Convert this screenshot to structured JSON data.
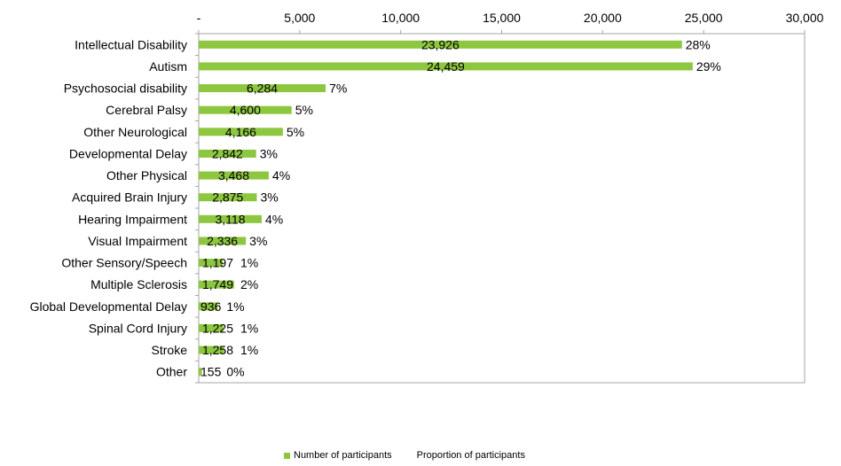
{
  "chart_data": {
    "type": "bar",
    "orientation": "horizontal",
    "categories": [
      "Intellectual Disability",
      "Autism",
      "Psychosocial disability",
      "Cerebral Palsy",
      "Other Neurological",
      "Developmental Delay",
      "Other Physical",
      "Acquired Brain Injury",
      "Hearing Impairment",
      "Visual Impairment",
      "Other Sensory/Speech",
      "Multiple Sclerosis",
      "Global Developmental Delay",
      "Spinal Cord Injury",
      "Stroke",
      "Other"
    ],
    "series": [
      {
        "name": "Number of participants",
        "color": "#8dc63f",
        "values": [
          23926,
          24459,
          6284,
          4600,
          4166,
          2842,
          3468,
          2875,
          3118,
          2336,
          1197,
          1749,
          936,
          1225,
          1258,
          155
        ],
        "labels": [
          "23,926",
          "24,459",
          "6,284",
          "4,600",
          "4,166",
          "2,842",
          "3,468",
          "2,875",
          "3,118",
          "2,336",
          "1,197",
          "1,749",
          "936",
          "1,225",
          "1,258",
          "155"
        ]
      },
      {
        "name": "Proportion of participants",
        "values": [
          28,
          29,
          7,
          5,
          5,
          3,
          4,
          3,
          4,
          3,
          1,
          2,
          1,
          1,
          1,
          0
        ],
        "labels": [
          "28%",
          "29%",
          "7%",
          "5%",
          "5%",
          "3%",
          "4%",
          "3%",
          "4%",
          "3%",
          "1%",
          "2%",
          "1%",
          "1%",
          "1%",
          "0%"
        ]
      }
    ],
    "xlim": [
      0,
      30000
    ],
    "xticks": [
      0,
      5000,
      10000,
      15000,
      20000,
      25000,
      30000
    ],
    "xtick_labels": [
      "-",
      "5,000",
      "10,000",
      "15,000",
      "20,000",
      "25,000",
      "30,000"
    ],
    "axis_position": "top",
    "grid": false,
    "legend_position": "bottom"
  }
}
